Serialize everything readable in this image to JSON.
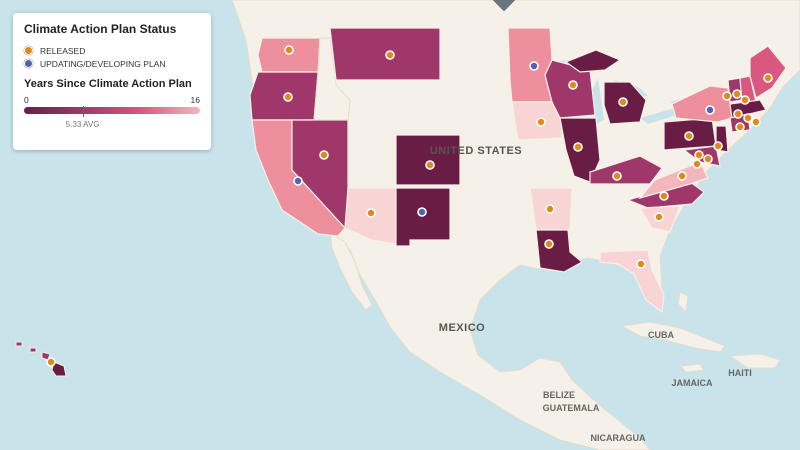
{
  "legend": {
    "status_title": "Climate Action Plan Status",
    "status_items": [
      {
        "label": "RELEASED",
        "color": "#e08a1e"
      },
      {
        "label": "UPDATING/DEVELOPING PLAN",
        "color": "#5561ae"
      }
    ],
    "scale_title": "Years Since Climate Action Plan",
    "scale_min": "0",
    "scale_max": "16",
    "avg_value": 5.33,
    "avg_label": "5.33 AVG"
  },
  "map_labels": {
    "usa": "UNITED STATES",
    "mexico": "MEXICO",
    "cuba": "CUBA",
    "jamaica": "JAMAICA",
    "haiti": "HAITI",
    "belize": "BELIZE",
    "guatemala": "GUATEMALA",
    "nicaragua": "NICARAGUA"
  },
  "colors": {
    "water": "#c9e3ea",
    "land": "#f6f1e8",
    "dark": "#6a1d44",
    "mid": "#a0376a",
    "rose": "#d9587f",
    "pink": "#ee8f9d",
    "light": "#f4b6bd",
    "pale": "#f9d4d5"
  }
}
